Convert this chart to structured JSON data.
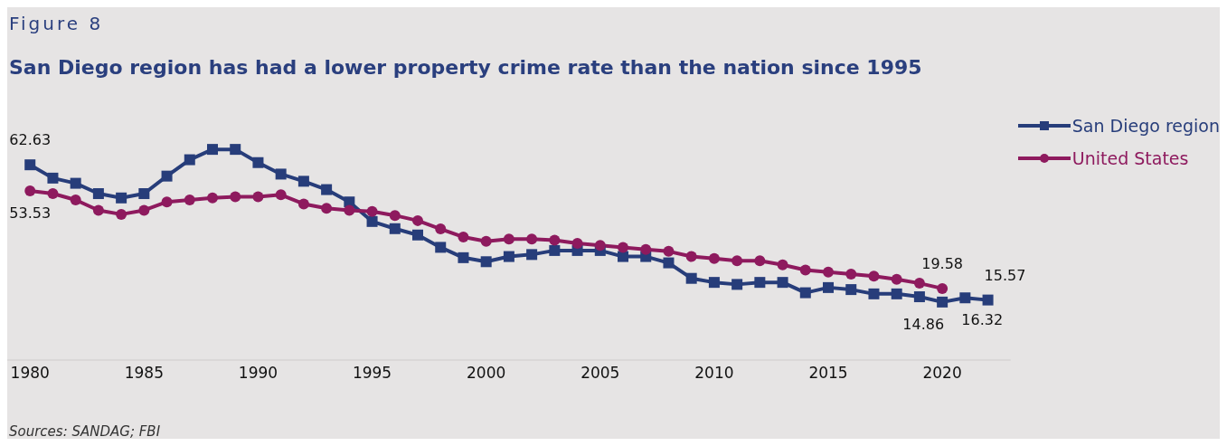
{
  "chart_data": {
    "type": "line",
    "title": "San Diego region has had a lower property crime rate than the nation since 1995",
    "annotations": [
      "Figure 8",
      "Sources: SANDAG; FBI"
    ],
    "x": [
      1980,
      1981,
      1982,
      1983,
      1984,
      1985,
      1986,
      1987,
      1988,
      1989,
      1990,
      1991,
      1992,
      1993,
      1994,
      1995,
      1996,
      1997,
      1998,
      1999,
      2000,
      2001,
      2002,
      2003,
      2004,
      2005,
      2006,
      2007,
      2008,
      2009,
      2010,
      2011,
      2012,
      2013,
      2014,
      2015,
      2016,
      2017,
      2018,
      2019,
      2020,
      2021,
      2022
    ],
    "xlim": [
      1979,
      2023
    ],
    "xticks": [
      1980,
      1985,
      1990,
      1995,
      2000,
      2005,
      2010,
      2015,
      2020
    ],
    "grid": false,
    "legend": "top right",
    "line_style": "solid",
    "series": [
      {
        "name": "San Diego region",
        "color": "#273d7a",
        "marker": "square",
        "values": [
          62.63,
          58.0,
          56.2,
          52.6,
          51.1,
          52.6,
          58.7,
          64.4,
          68.0,
          68.0,
          63.4,
          59.4,
          56.9,
          54.0,
          49.7,
          42.9,
          40.4,
          38.2,
          33.9,
          30.3,
          28.9,
          30.7,
          31.4,
          32.8,
          32.8,
          32.8,
          30.7,
          30.7,
          28.5,
          23.1,
          21.7,
          21.0,
          21.7,
          21.7,
          18.1,
          19.9,
          19.2,
          17.7,
          17.7,
          16.7,
          14.86,
          16.32,
          15.57
        ],
        "value_labels": [
          "62.63",
          null,
          null,
          null,
          null,
          null,
          null,
          null,
          null,
          null,
          null,
          null,
          null,
          null,
          null,
          null,
          null,
          null,
          null,
          null,
          null,
          null,
          null,
          null,
          null,
          null,
          null,
          null,
          null,
          null,
          null,
          null,
          null,
          null,
          null,
          null,
          null,
          null,
          null,
          null,
          "14.86",
          "16.32",
          "15.57"
        ]
      },
      {
        "name": "United States",
        "color": "#8e1a5e",
        "marker": "circle",
        "values": [
          53.53,
          52.6,
          50.4,
          46.8,
          45.4,
          46.8,
          49.7,
          50.4,
          51.1,
          51.5,
          51.5,
          52.2,
          49.0,
          47.5,
          46.8,
          46.4,
          45.0,
          43.2,
          40.3,
          37.5,
          36.0,
          36.8,
          36.8,
          36.4,
          35.3,
          34.6,
          33.9,
          33.2,
          32.5,
          30.7,
          30.0,
          29.2,
          29.2,
          27.8,
          26.0,
          25.3,
          24.6,
          23.9,
          22.8,
          21.4,
          19.58,
          null,
          null
        ],
        "value_labels": [
          "53.53",
          null,
          null,
          null,
          null,
          null,
          null,
          null,
          null,
          null,
          null,
          null,
          null,
          null,
          null,
          null,
          null,
          null,
          null,
          null,
          null,
          null,
          null,
          null,
          null,
          null,
          null,
          null,
          null,
          null,
          null,
          null,
          null,
          null,
          null,
          null,
          null,
          null,
          null,
          null,
          "19.58",
          null,
          null
        ]
      }
    ]
  }
}
